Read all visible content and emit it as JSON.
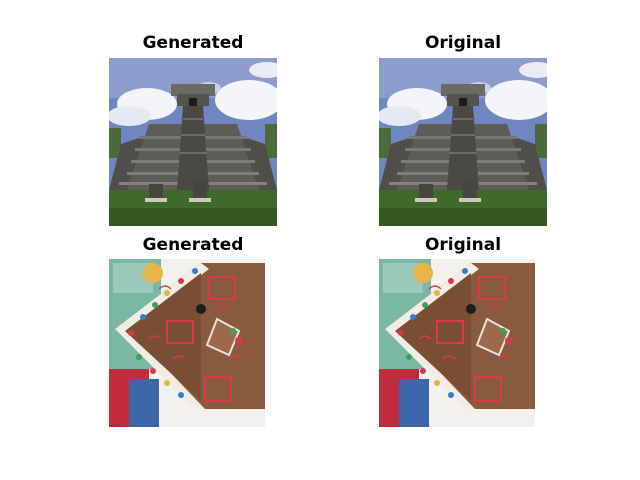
{
  "figure": {
    "panels": [
      {
        "title": "Generated",
        "image": "stone-pyramid-temple"
      },
      {
        "title": "Original",
        "image": "stone-pyramid-temple"
      },
      {
        "title": "Generated",
        "image": "gingerbread-house"
      },
      {
        "title": "Original",
        "image": "gingerbread-house"
      }
    ]
  },
  "colors": {
    "sky": "#6f86c0",
    "cloud": "#f2f4f8",
    "stone": "#5b5a55",
    "grass": "#3f6a2c",
    "gingerbread": "#8a5a3e",
    "icing": "#f1ece6",
    "candy_red": "#c8283a"
  }
}
